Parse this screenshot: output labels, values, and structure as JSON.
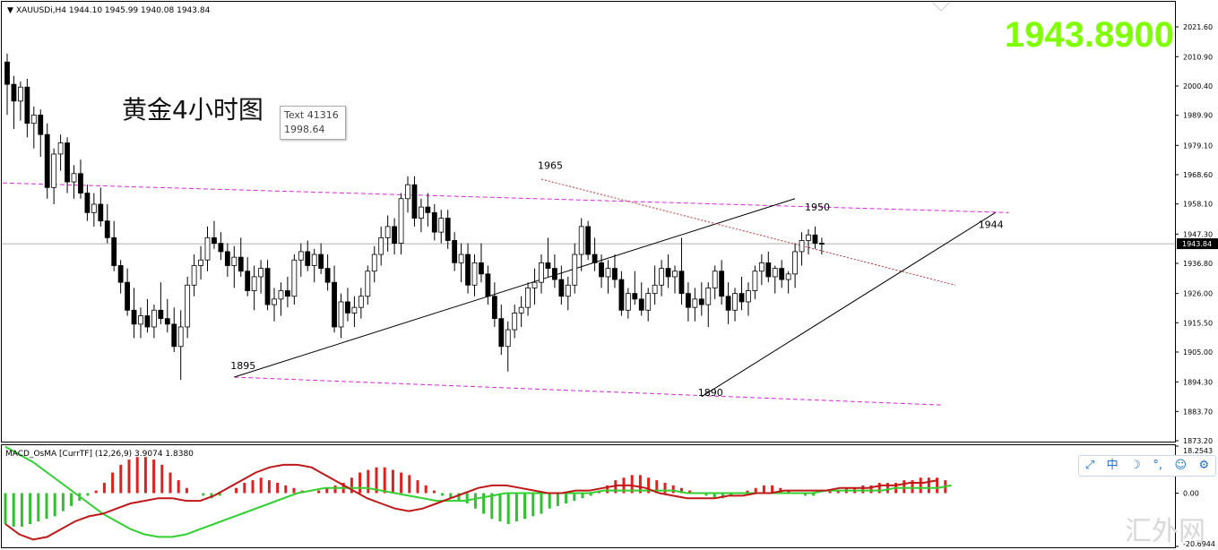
{
  "header": {
    "symbol_info": "XAUUSDi,H4  1944.10 1945.99 1940.08 1943.84",
    "big_price": "1943.8900",
    "chart_title": "黄金4小时图"
  },
  "tooltip": {
    "line1": "Text 41316",
    "line2": "1998.64"
  },
  "macd_label": "MACD_OsMA [CurrTF] (12,26,9) 3.9074 1.8380",
  "watermark": "汇外网",
  "ime_toolbar": [
    "⤢",
    "中",
    "☽",
    "°,",
    "☺",
    "⚙"
  ],
  "colors": {
    "bull_fill": "#ffffff",
    "bear_fill": "#000000",
    "channel": "#dd22dd",
    "trend": "#000000",
    "resistance": "#c0303a",
    "big_price": "#7fff00",
    "osma_pos": "#e02020",
    "osma_neg": "#30c030",
    "macd_line": "#c01818",
    "signal_line": "#30d030"
  },
  "chart_data": {
    "type": "candlestick",
    "price_axis": {
      "ticks": [
        "2021.60",
        "2010.90",
        "2000.40",
        "1989.90",
        "1979.10",
        "1968.60",
        "1958.10",
        "1947.30",
        "1936.80",
        "1926.00",
        "1915.50",
        "1905.00",
        "1894.30",
        "1883.70",
        "1873.20"
      ],
      "current_label": "1943.84",
      "ylim": [
        1873.2,
        2021.6
      ]
    },
    "annotations": [
      {
        "text": "1965",
        "bar": 80,
        "price": 1968.8
      },
      {
        "text": "1950",
        "bar": 120,
        "price": 1953.9
      },
      {
        "text": "1944",
        "bar": 146,
        "price": 1947.6
      },
      {
        "text": "1895",
        "bar": 34,
        "price": 1897.0
      },
      {
        "text": "1890",
        "bar": 104,
        "price": 1887.3
      }
    ],
    "candles_note": "bars estimated from chart; OHLC",
    "candles": [
      [
        2009,
        2012,
        1990,
        2001
      ],
      [
        2001,
        2004,
        1985,
        1995
      ],
      [
        1995,
        2002,
        1988,
        2000
      ],
      [
        2000,
        2003,
        1982,
        1987
      ],
      [
        1987,
        1993,
        1978,
        1990
      ],
      [
        1990,
        1992,
        1975,
        1983
      ],
      [
        1983,
        1987,
        1960,
        1964
      ],
      [
        1964,
        1978,
        1958,
        1976
      ],
      [
        1976,
        1983,
        1970,
        1980
      ],
      [
        1980,
        1982,
        1962,
        1966
      ],
      [
        1966,
        1972,
        1960,
        1969
      ],
      [
        1969,
        1974,
        1960,
        1962
      ],
      [
        1962,
        1965,
        1952,
        1955
      ],
      [
        1955,
        1962,
        1950,
        1958
      ],
      [
        1958,
        1964,
        1950,
        1952
      ],
      [
        1952,
        1958,
        1944,
        1946
      ],
      [
        1946,
        1952,
        1934,
        1936
      ],
      [
        1936,
        1938,
        1926,
        1930
      ],
      [
        1930,
        1935,
        1918,
        1920
      ],
      [
        1920,
        1928,
        1910,
        1915
      ],
      [
        1915,
        1921,
        1910,
        1918
      ],
      [
        1918,
        1924,
        1912,
        1914
      ],
      [
        1914,
        1922,
        1910,
        1920
      ],
      [
        1920,
        1930,
        1915,
        1917
      ],
      [
        1917,
        1924,
        1912,
        1915
      ],
      [
        1915,
        1921,
        1905,
        1907
      ],
      [
        1907,
        1920,
        1895,
        1914
      ],
      [
        1914,
        1932,
        1910,
        1929
      ],
      [
        1929,
        1940,
        1925,
        1936
      ],
      [
        1936,
        1943,
        1931,
        1938
      ],
      [
        1938,
        1950,
        1934,
        1946
      ],
      [
        1946,
        1952,
        1942,
        1944
      ],
      [
        1944,
        1948,
        1938,
        1941
      ],
      [
        1941,
        1944,
        1932,
        1936
      ],
      [
        1936,
        1943,
        1928,
        1939
      ],
      [
        1939,
        1946,
        1932,
        1934
      ],
      [
        1934,
        1939,
        1925,
        1927
      ],
      [
        1927,
        1936,
        1920,
        1932
      ],
      [
        1932,
        1938,
        1926,
        1935
      ],
      [
        1935,
        1938,
        1920,
        1922
      ],
      [
        1922,
        1928,
        1916,
        1924
      ],
      [
        1924,
        1930,
        1918,
        1927
      ],
      [
        1927,
        1932,
        1921,
        1925
      ],
      [
        1925,
        1940,
        1922,
        1938
      ],
      [
        1938,
        1944,
        1932,
        1941
      ],
      [
        1941,
        1945,
        1934,
        1936
      ],
      [
        1936,
        1942,
        1930,
        1940
      ],
      [
        1940,
        1944,
        1933,
        1935
      ],
      [
        1935,
        1940,
        1927,
        1930
      ],
      [
        1930,
        1936,
        1912,
        1914
      ],
      [
        1914,
        1926,
        1910,
        1923
      ],
      [
        1923,
        1928,
        1916,
        1919
      ],
      [
        1919,
        1925,
        1914,
        1921
      ],
      [
        1921,
        1928,
        1917,
        1925
      ],
      [
        1925,
        1936,
        1922,
        1934
      ],
      [
        1934,
        1943,
        1930,
        1940
      ],
      [
        1940,
        1950,
        1936,
        1946
      ],
      [
        1946,
        1954,
        1941,
        1950
      ],
      [
        1950,
        1953,
        1940,
        1944
      ],
      [
        1944,
        1962,
        1940,
        1960
      ],
      [
        1960,
        1968,
        1955,
        1965
      ],
      [
        1965,
        1968,
        1950,
        1953
      ],
      [
        1953,
        1960,
        1948,
        1957
      ],
      [
        1957,
        1962,
        1950,
        1955
      ],
      [
        1955,
        1958,
        1945,
        1948
      ],
      [
        1948,
        1956,
        1944,
        1953
      ],
      [
        1953,
        1956,
        1942,
        1945
      ],
      [
        1945,
        1948,
        1934,
        1937
      ],
      [
        1937,
        1944,
        1930,
        1940
      ],
      [
        1940,
        1944,
        1926,
        1929
      ],
      [
        1929,
        1940,
        1925,
        1937
      ],
      [
        1937,
        1944,
        1930,
        1933
      ],
      [
        1933,
        1936,
        1922,
        1925
      ],
      [
        1925,
        1930,
        1914,
        1917
      ],
      [
        1917,
        1922,
        1904,
        1907
      ],
      [
        1907,
        1916,
        1898,
        1913
      ],
      [
        1913,
        1922,
        1910,
        1919
      ],
      [
        1919,
        1925,
        1914,
        1921
      ],
      [
        1921,
        1930,
        1918,
        1928
      ],
      [
        1928,
        1935,
        1922,
        1930
      ],
      [
        1930,
        1940,
        1926,
        1937
      ],
      [
        1937,
        1946,
        1932,
        1935
      ],
      [
        1935,
        1940,
        1928,
        1931
      ],
      [
        1931,
        1936,
        1922,
        1925
      ],
      [
        1925,
        1932,
        1920,
        1929
      ],
      [
        1929,
        1944,
        1926,
        1940
      ],
      [
        1940,
        1953,
        1934,
        1950
      ],
      [
        1950,
        1952,
        1938,
        1940
      ],
      [
        1940,
        1946,
        1934,
        1937
      ],
      [
        1937,
        1940,
        1928,
        1932
      ],
      [
        1932,
        1938,
        1926,
        1935
      ],
      [
        1935,
        1940,
        1928,
        1931
      ],
      [
        1931,
        1934,
        1918,
        1920
      ],
      [
        1920,
        1928,
        1917,
        1926
      ],
      [
        1926,
        1934,
        1922,
        1924
      ],
      [
        1924,
        1930,
        1918,
        1920
      ],
      [
        1920,
        1928,
        1916,
        1926
      ],
      [
        1926,
        1936,
        1922,
        1929
      ],
      [
        1929,
        1938,
        1925,
        1935
      ],
      [
        1935,
        1940,
        1928,
        1932
      ],
      [
        1932,
        1936,
        1926,
        1934
      ],
      [
        1934,
        1946,
        1922,
        1926
      ],
      [
        1926,
        1930,
        1916,
        1921
      ],
      [
        1921,
        1928,
        1916,
        1924
      ],
      [
        1924,
        1930,
        1918,
        1922
      ],
      [
        1922,
        1930,
        1914,
        1928
      ],
      [
        1928,
        1936,
        1924,
        1934
      ],
      [
        1934,
        1938,
        1922,
        1925
      ],
      [
        1925,
        1930,
        1915,
        1920
      ],
      [
        1920,
        1928,
        1916,
        1926
      ],
      [
        1926,
        1932,
        1920,
        1923
      ],
      [
        1923,
        1930,
        1918,
        1927
      ],
      [
        1927,
        1936,
        1924,
        1934
      ],
      [
        1934,
        1940,
        1929,
        1937
      ],
      [
        1937,
        1941,
        1930,
        1932
      ],
      [
        1932,
        1936,
        1926,
        1935
      ],
      [
        1935,
        1938,
        1928,
        1931
      ],
      [
        1931,
        1934,
        1926,
        1933
      ],
      [
        1933,
        1944,
        1928,
        1941
      ],
      [
        1941,
        1948,
        1936,
        1945
      ],
      [
        1945,
        1949,
        1940,
        1947
      ],
      [
        1947,
        1950,
        1942,
        1944
      ],
      [
        1944,
        1946,
        1940,
        1943.84
      ]
    ],
    "lines": [
      {
        "name": "upper-channel",
        "style": "dashed",
        "color": "channel",
        "p1": [
          -20,
          1967
        ],
        "p2": [
          150,
          1955
        ]
      },
      {
        "name": "lower-channel",
        "style": "dashed",
        "color": "channel",
        "p1": [
          34,
          1896
        ],
        "p2": [
          140,
          1886
        ]
      },
      {
        "name": "trend-1",
        "style": "solid",
        "color": "trend",
        "p1": [
          34,
          1896
        ],
        "p2": [
          118,
          1960
        ]
      },
      {
        "name": "trend-2",
        "style": "solid",
        "color": "trend",
        "p1": [
          104,
          1889
        ],
        "p2": [
          148,
          1955
        ]
      },
      {
        "name": "resistance",
        "style": "dotted",
        "color": "resistance",
        "p1": [
          80,
          1967
        ],
        "p2": [
          142,
          1929
        ]
      }
    ],
    "macd": {
      "ylim": [
        -20.6944,
        18.2543
      ],
      "ticks": [
        "18.2543",
        "0.00",
        "-20.6944"
      ],
      "osma": [
        -12,
        -13,
        -13,
        -12,
        -11,
        -10,
        -9,
        -7,
        -5,
        -3,
        -1,
        1,
        4,
        8,
        11,
        13,
        14,
        14,
        13,
        11,
        8,
        5,
        2,
        0,
        -1,
        -2,
        -1,
        0,
        2,
        4,
        5,
        6,
        5,
        4,
        3,
        2,
        1,
        0,
        1,
        2,
        3,
        4,
        6,
        8,
        9,
        10,
        10,
        9,
        8,
        7,
        5,
        3,
        1,
        -1,
        -2,
        -3,
        -4,
        -6,
        -8,
        -10,
        -11,
        -12,
        -11,
        -10,
        -9,
        -8,
        -6,
        -5,
        -4,
        -3,
        -2,
        -1,
        1,
        3,
        5,
        6,
        7,
        7,
        6,
        5,
        4,
        3,
        2,
        1,
        0,
        -1,
        -2,
        -2,
        -1,
        0,
        1,
        2,
        3,
        3,
        2,
        1,
        0,
        -1,
        -1,
        0,
        1,
        1,
        2,
        2,
        3,
        3,
        4,
        4,
        4,
        5,
        5,
        6,
        6,
        6,
        5
      ],
      "macd_line": [
        -12,
        -16,
        -18,
        -17,
        -14,
        -11,
        -9,
        -8,
        -6,
        -4,
        -3,
        -2,
        -2,
        -3,
        -3,
        -1,
        2,
        5,
        8,
        10,
        11,
        11,
        10,
        7,
        4,
        1,
        -2,
        -4,
        -6,
        -7,
        -6,
        -4,
        -2,
        0,
        2,
        3,
        3,
        2,
        1,
        0,
        0,
        1,
        1,
        2,
        3,
        3,
        2,
        0,
        -1,
        -2,
        -2,
        -2,
        -1,
        -1,
        0,
        0,
        1,
        1,
        1,
        1,
        2,
        2,
        2,
        3,
        3,
        4,
        4,
        5
      ],
      "signal_line": [
        18,
        15,
        12,
        8,
        4,
        0,
        -4,
        -8,
        -11,
        -14,
        -16,
        -17,
        -17,
        -16,
        -14,
        -12,
        -10,
        -8,
        -6,
        -4,
        -2,
        0,
        1,
        2,
        2,
        2,
        2,
        1,
        0,
        -1,
        -2,
        -3,
        -3,
        -3,
        -2,
        -1,
        0,
        0,
        0,
        0,
        0,
        0,
        0,
        1,
        1,
        1,
        1,
        1,
        1,
        0,
        0,
        0,
        0,
        0,
        0,
        0,
        0,
        0,
        0,
        1,
        1,
        1,
        1,
        1,
        2,
        2,
        2,
        2,
        3
      ]
    }
  }
}
